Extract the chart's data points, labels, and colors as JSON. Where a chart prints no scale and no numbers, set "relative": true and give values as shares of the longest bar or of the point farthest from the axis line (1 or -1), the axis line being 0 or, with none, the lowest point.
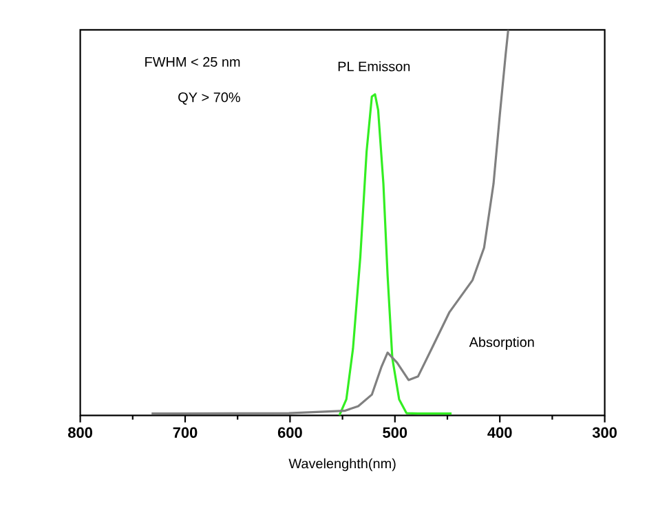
{
  "chart_data": {
    "type": "line",
    "xlabel": "Wavelenghth(nm)",
    "xlim": [
      800,
      300
    ],
    "xticks": [
      800,
      700,
      600,
      500,
      400,
      300
    ],
    "relative": true,
    "legend": false,
    "grid": false,
    "annotations": [
      "FWHM < 25 nm",
      "QY > 70%"
    ],
    "series": [
      {
        "name": "PL Emisson",
        "color": "#33ee22",
        "x": [
          553,
          546.3,
          540,
          533,
          527,
          522,
          519,
          516,
          511,
          507,
          502.5,
          496,
          489,
          478,
          446
        ],
        "values": [
          0,
          0.042,
          0.173,
          0.411,
          0.685,
          0.827,
          0.833,
          0.792,
          0.601,
          0.363,
          0.149,
          0.042,
          0.006,
          0.005,
          0.005
        ]
      },
      {
        "name": "Absorption",
        "color": "#808080",
        "x": [
          732,
          601,
          548,
          535,
          522,
          513,
          507,
          498,
          487,
          478,
          465,
          448,
          426,
          415,
          406,
          400,
          394.5,
          392
        ],
        "values": [
          0.005,
          0.006,
          0.012,
          0.024,
          0.054,
          0.125,
          0.163,
          0.137,
          0.092,
          0.101,
          0.173,
          0.268,
          0.351,
          0.435,
          0.601,
          0.78,
          0.935,
          1.0
        ]
      }
    ]
  }
}
